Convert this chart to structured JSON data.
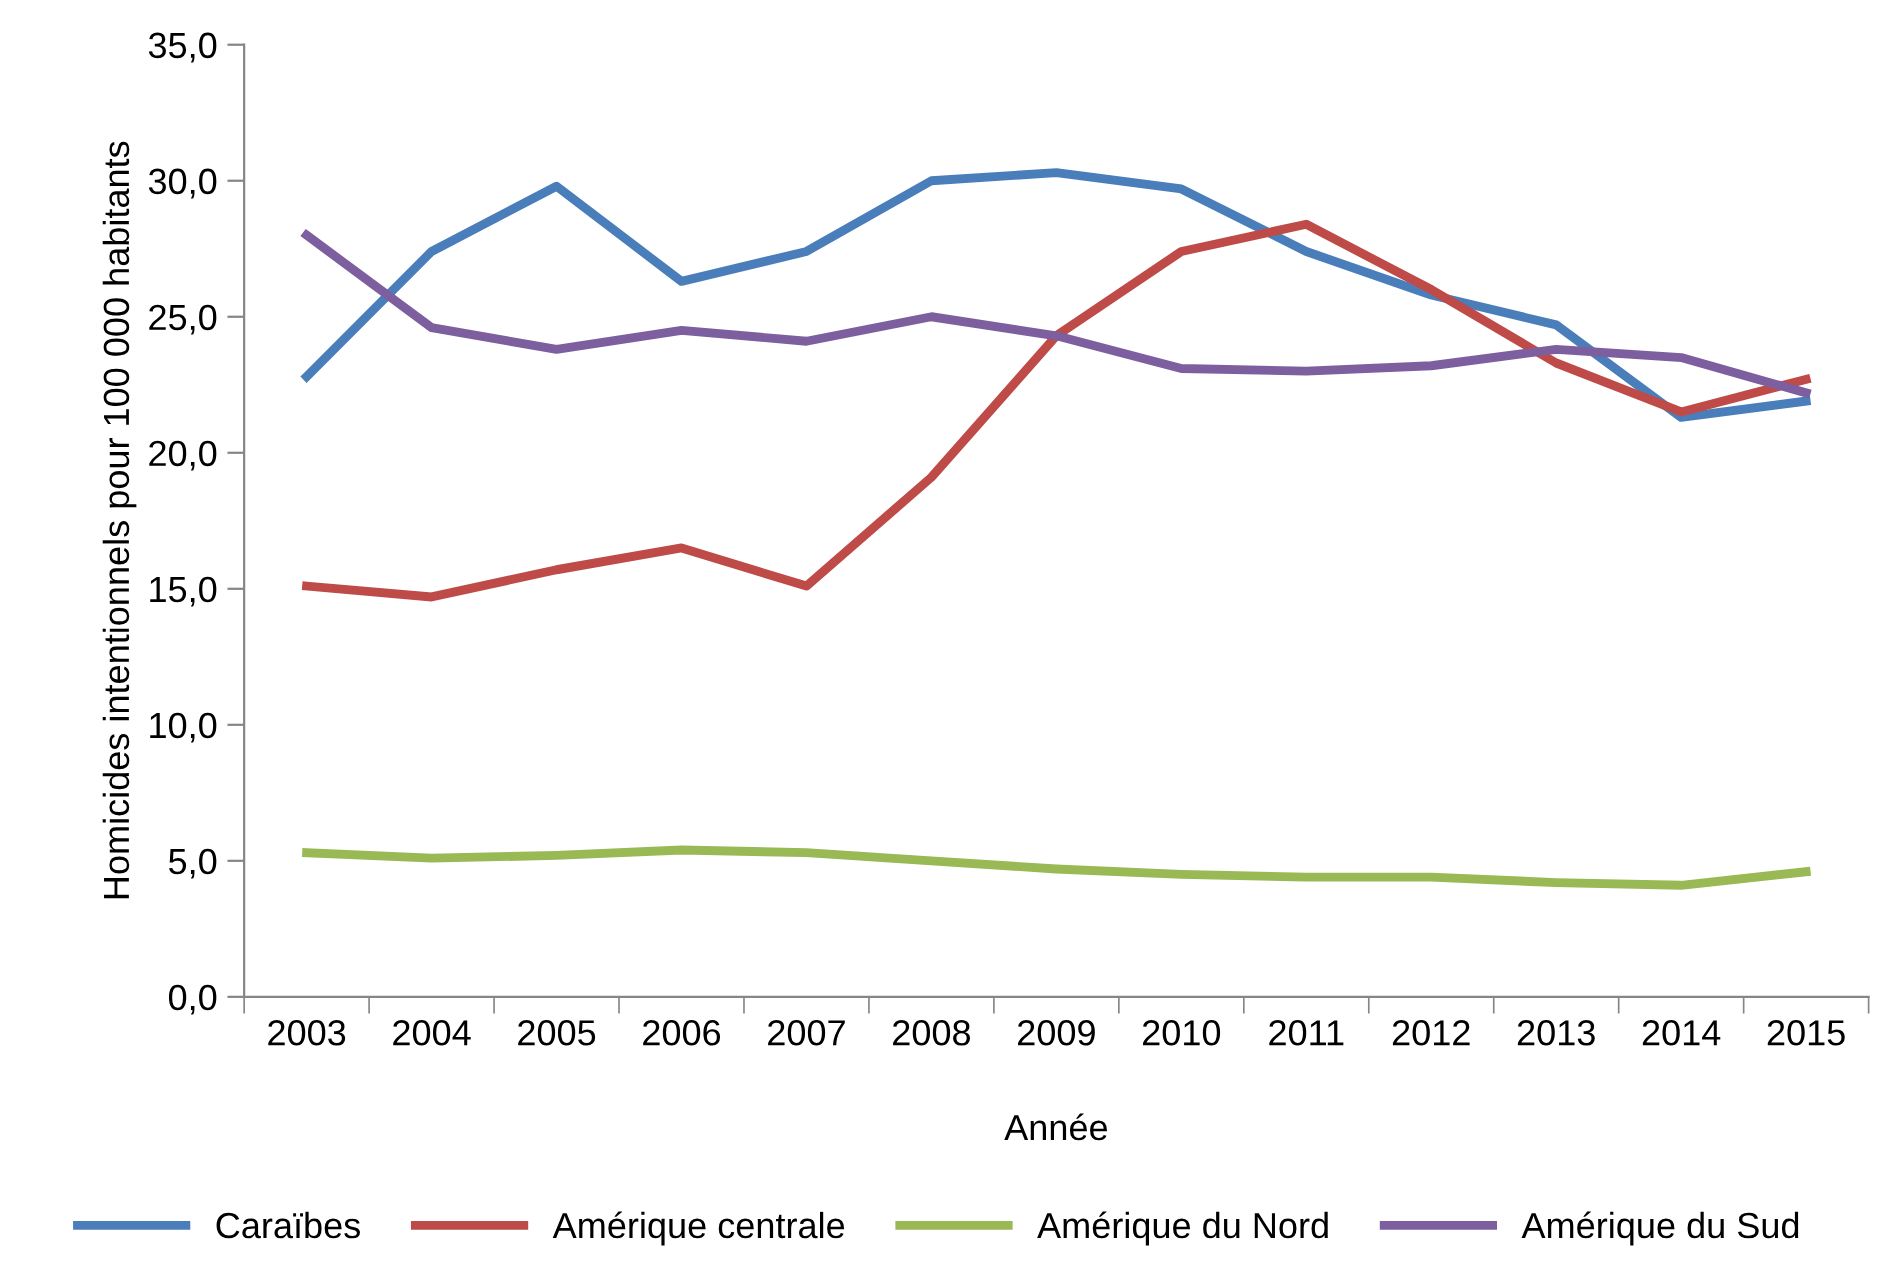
{
  "chart_data": {
    "type": "line",
    "xlabel": "Année",
    "ylabel": "Homicides intentionnels pour 100 000 habitants",
    "categories": [
      "2003",
      "2004",
      "2005",
      "2006",
      "2007",
      "2008",
      "2009",
      "2010",
      "2011",
      "2012",
      "2013",
      "2014",
      "2015"
    ],
    "series": [
      {
        "name": "Caraïbes",
        "color": "#4a7ebb",
        "values": [
          22.8,
          27.4,
          29.8,
          26.3,
          27.4,
          30.0,
          30.3,
          29.7,
          27.4,
          25.8,
          24.7,
          21.3,
          21.9
        ]
      },
      {
        "name": "Amérique centrale",
        "color": "#be4b48",
        "values": [
          15.1,
          14.7,
          15.7,
          16.5,
          15.1,
          19.1,
          24.3,
          27.4,
          28.4,
          26.0,
          23.3,
          21.5,
          22.7
        ]
      },
      {
        "name": "Amérique du Nord",
        "color": "#98b954",
        "values": [
          5.3,
          5.1,
          5.2,
          5.4,
          5.3,
          5.0,
          4.7,
          4.5,
          4.4,
          4.4,
          4.2,
          4.1,
          4.6
        ]
      },
      {
        "name": "Amérique du Sud",
        "color": "#7d5fa0",
        "values": [
          28.0,
          24.6,
          23.8,
          24.5,
          24.1,
          25.0,
          24.3,
          23.1,
          23.0,
          23.2,
          23.8,
          23.5,
          22.2
        ]
      }
    ],
    "ylim": [
      0,
      35
    ],
    "yticks": [
      {
        "value": 0,
        "label": "0,0"
      },
      {
        "value": 5,
        "label": "5,0"
      },
      {
        "value": 10,
        "label": "10,0"
      },
      {
        "value": 15,
        "label": "15,0"
      },
      {
        "value": 20,
        "label": "20,0"
      },
      {
        "value": 25,
        "label": "25,0"
      },
      {
        "value": 30,
        "label": "30,0"
      },
      {
        "value": 35,
        "label": "35,0"
      }
    ],
    "grid": false,
    "legend": "bottom",
    "marker": "none",
    "line_style": "solid"
  }
}
